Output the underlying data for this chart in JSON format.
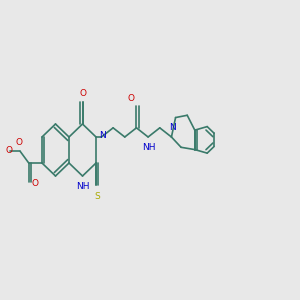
{
  "bg_color": "#e8e8e8",
  "bond_color": "#3a7a6a",
  "lw": 1.2,
  "fs": 6.5,
  "colors": {
    "O": "#cc0000",
    "N": "#0000cc",
    "S": "#aaaa00",
    "C": "#3a7a6a"
  },
  "xlim": [
    0,
    10
  ],
  "ylim": [
    2,
    8
  ]
}
